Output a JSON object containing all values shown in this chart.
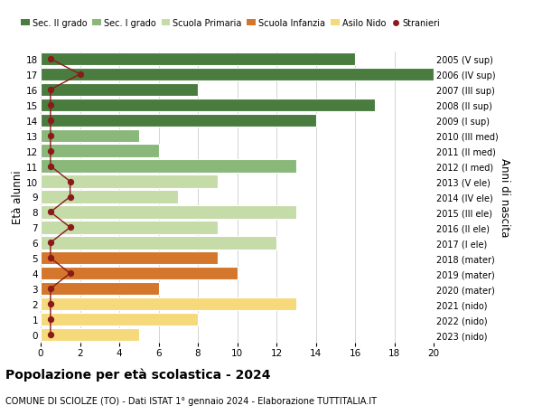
{
  "ages": [
    18,
    17,
    16,
    15,
    14,
    13,
    12,
    11,
    10,
    9,
    8,
    7,
    6,
    5,
    4,
    3,
    2,
    1,
    0
  ],
  "right_labels": [
    "2005 (V sup)",
    "2006 (IV sup)",
    "2007 (III sup)",
    "2008 (II sup)",
    "2009 (I sup)",
    "2010 (III med)",
    "2011 (II med)",
    "2012 (I med)",
    "2013 (V ele)",
    "2014 (IV ele)",
    "2015 (III ele)",
    "2016 (II ele)",
    "2017 (I ele)",
    "2018 (mater)",
    "2019 (mater)",
    "2020 (mater)",
    "2021 (nido)",
    "2022 (nido)",
    "2023 (nido)"
  ],
  "bar_values": [
    16,
    20,
    8,
    17,
    14,
    5,
    6,
    13,
    9,
    7,
    13,
    9,
    12,
    9,
    10,
    6,
    13,
    8,
    5
  ],
  "bar_colors": [
    "#4a7c3f",
    "#4a7c3f",
    "#4a7c3f",
    "#4a7c3f",
    "#4a7c3f",
    "#8ab87a",
    "#8ab87a",
    "#8ab87a",
    "#c5dba8",
    "#c5dba8",
    "#c5dba8",
    "#c5dba8",
    "#c5dba8",
    "#d4762b",
    "#d4762b",
    "#d4762b",
    "#f5d97a",
    "#f5d97a",
    "#f5d97a"
  ],
  "stranieri_x": [
    0.5,
    2.0,
    0.5,
    0.5,
    0.5,
    0.5,
    0.5,
    0.5,
    1.5,
    1.5,
    0.5,
    1.5,
    0.5,
    0.5,
    1.5,
    0.5,
    0.5,
    0.5,
    0.5
  ],
  "legend_labels": [
    "Sec. II grado",
    "Sec. I grado",
    "Scuola Primaria",
    "Scuola Infanzia",
    "Asilo Nido",
    "Stranieri"
  ],
  "legend_colors": [
    "#4a7c3f",
    "#8ab87a",
    "#c5dba8",
    "#d4762b",
    "#f5d97a",
    "#c0392b"
  ],
  "stranieri_color": "#8b1a1a",
  "ylabel_left": "Età alunni",
  "ylabel_right": "Anni di nascita",
  "title_bold": "Popolazione per età scolastica - 2024",
  "subtitle": "COMUNE DI SCIOLZE (TO) - Dati ISTAT 1° gennaio 2024 - Elaborazione TUTTITALIA.IT",
  "xlim": [
    0,
    20
  ],
  "xticks": [
    0,
    2,
    4,
    6,
    8,
    10,
    12,
    14,
    16,
    18,
    20
  ],
  "background_color": "#ffffff",
  "grid_color": "#cccccc"
}
